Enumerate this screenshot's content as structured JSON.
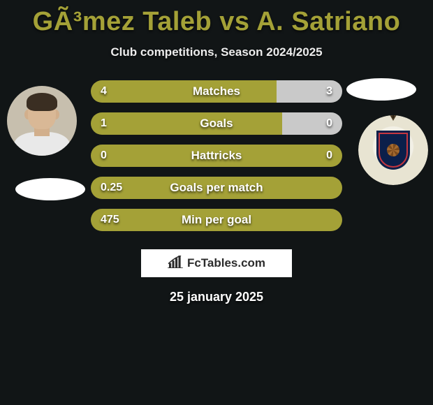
{
  "title": "GÃ³mez Taleb vs A. Satriano",
  "subtitle": "Club competitions, Season 2024/2025",
  "date": "25 january 2025",
  "footer_brand": "FcTables.com",
  "colors": {
    "background": "#111516",
    "accent": "#a4a137",
    "bar_left_dominant": "#a4a137",
    "bar_right_weak": "#c9c9c9",
    "bar_only_accent": "#a4a137",
    "text": "#ffffff"
  },
  "player_left": {
    "name": "GÃ³mez Taleb"
  },
  "player_right": {
    "name": "A. Satriano"
  },
  "bars": [
    {
      "label": "Matches",
      "left_value": "4",
      "right_value": "3",
      "left_pct": 74,
      "right_pct": 26,
      "left_color": "#a4a137",
      "right_color": "#c9c9c9"
    },
    {
      "label": "Goals",
      "left_value": "1",
      "right_value": "0",
      "left_pct": 76,
      "right_pct": 24,
      "left_color": "#a4a137",
      "right_color": "#c9c9c9"
    },
    {
      "label": "Hattricks",
      "left_value": "0",
      "right_value": "0",
      "left_pct": 100,
      "right_pct": 0,
      "left_color": "#a4a137",
      "right_color": "#a4a137"
    },
    {
      "label": "Goals per match",
      "left_value": "0.25",
      "right_value": "",
      "left_pct": 100,
      "right_pct": 0,
      "left_color": "#a4a137",
      "right_color": "#a4a137"
    },
    {
      "label": "Min per goal",
      "left_value": "475",
      "right_value": "",
      "left_pct": 100,
      "right_pct": 0,
      "left_color": "#a4a137",
      "right_color": "#a4a137"
    }
  ]
}
